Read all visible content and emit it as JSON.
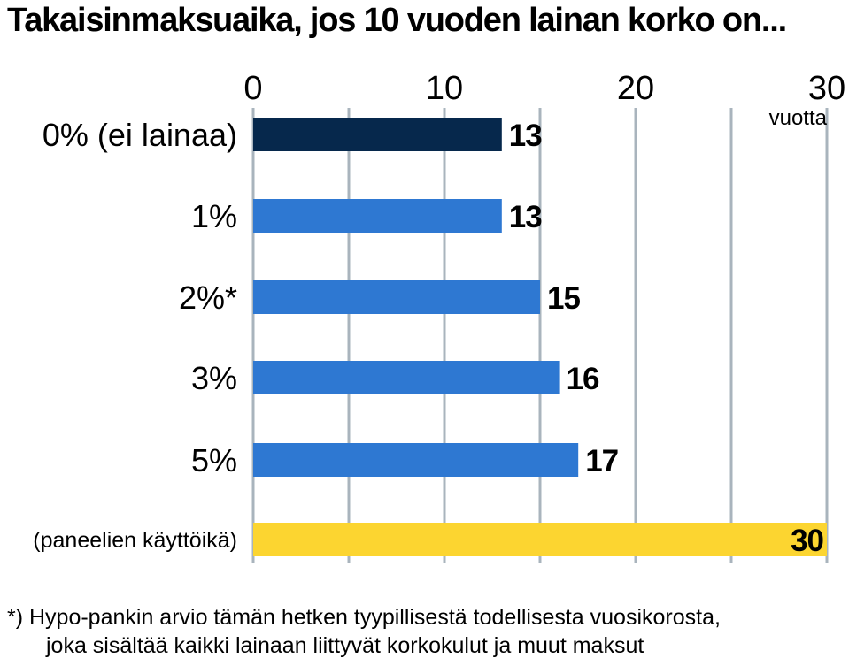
{
  "chart_data": {
    "type": "bar",
    "orientation": "horizontal",
    "title": "Takaisinmaksuaika, jos 10 vuoden lainan korko on...",
    "unit_label": "vuotta",
    "categories": [
      "0% (ei lainaa)",
      "1%",
      "2%*",
      "3%",
      "5%",
      "(paneelien käyttöikä)"
    ],
    "values": [
      13,
      13,
      15,
      16,
      17,
      30
    ],
    "data_labels": [
      "13",
      "13",
      "15",
      "16",
      "17",
      "30"
    ],
    "bar_colors": [
      "#06284c",
      "#2e78d2",
      "#2e78d2",
      "#2e78d2",
      "#2e78d2",
      "#fcd530"
    ],
    "xlim": [
      0,
      30
    ],
    "x_ticks": [
      0,
      10,
      20,
      30
    ],
    "x_tick_labels": [
      "0",
      "10",
      "20",
      "30"
    ],
    "grid_color": "#a9b4bd",
    "grid": true
  },
  "footnote": {
    "line1": "*) Hypo-pankin arvio tämän hetken tyypillisestä todellisesta vuosikorosta,",
    "line2": "joka sisältää kaikki lainaan liittyvät korkokulut ja muut maksut"
  }
}
